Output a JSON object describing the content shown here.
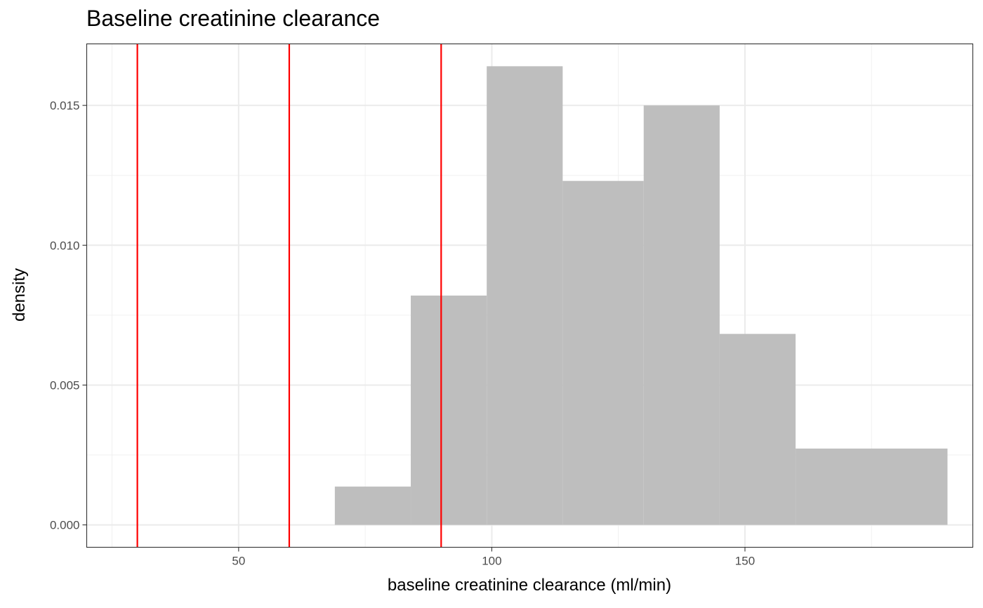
{
  "chart_data": {
    "type": "bar",
    "title": "Baseline creatinine clearance",
    "xlabel": "baseline creatinine clearance (ml/min)",
    "ylabel": "density",
    "xlim": [
      20,
      195
    ],
    "ylim": [
      -0.0008,
      0.0172
    ],
    "x_ticks": [
      "50",
      "100",
      "150"
    ],
    "y_ticks": [
      "0.000",
      "0.005",
      "0.010",
      "0.015"
    ],
    "x_tick_values": [
      50,
      100,
      150
    ],
    "y_tick_values": [
      0,
      0.005,
      0.01,
      0.015
    ],
    "x_minor_values": [
      25,
      75,
      125,
      175
    ],
    "y_minor_values": [
      0.0025,
      0.0075,
      0.0125
    ],
    "bins": [
      {
        "x0": 69,
        "x1": 84,
        "density": 0.00137
      },
      {
        "x0": 84,
        "x1": 99,
        "density": 0.0082
      },
      {
        "x0": 99,
        "x1": 114,
        "density": 0.0164
      },
      {
        "x0": 114,
        "x1": 130,
        "density": 0.0123
      },
      {
        "x0": 130,
        "x1": 145,
        "density": 0.015
      },
      {
        "x0": 145,
        "x1": 160,
        "density": 0.00683
      },
      {
        "x0": 160,
        "x1": 190,
        "density": 0.00273
      }
    ],
    "reference_lines": [
      30,
      60,
      90
    ],
    "reference_line_color": "#ff0000",
    "bar_color": "#bebebe",
    "grid": true,
    "legend": "none"
  }
}
